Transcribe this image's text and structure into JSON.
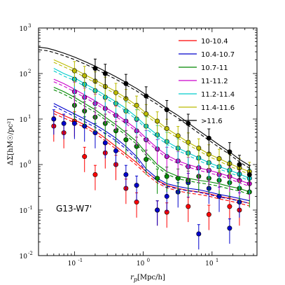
{
  "chart_data": {
    "type": "line",
    "title": "",
    "xlabel": "r_p [Mpc/h]",
    "ylabel": "ΔΣ[hM☉/pc²]",
    "xscale": "log",
    "yscale": "log",
    "xlim": [
      0.03,
      45
    ],
    "ylim": [
      0.01,
      1000
    ],
    "x_ticks": [
      {
        "value": 0.1,
        "label": "10",
        "exp": "-1"
      },
      {
        "value": 1,
        "label": "10",
        "exp": "0"
      },
      {
        "value": 10,
        "label": "10",
        "exp": "1"
      }
    ],
    "y_ticks": [
      {
        "value": 0.01,
        "label": "10",
        "exp": "-2"
      },
      {
        "value": 0.1,
        "label": "10",
        "exp": "-1"
      },
      {
        "value": 1,
        "label": "10",
        "exp": "0"
      },
      {
        "value": 10,
        "label": "10",
        "exp": "1"
      },
      {
        "value": 100,
        "label": "10",
        "exp": "2"
      },
      {
        "value": 1000,
        "label": "10",
        "exp": "3"
      }
    ],
    "legend_position": "top-right",
    "annotation": "G13-W7'",
    "grid": false,
    "series": [
      {
        "name": "10-10.4",
        "color": "#ff0000",
        "x": [
          0.05,
          0.07,
          0.1,
          0.14,
          0.2,
          0.28,
          0.4,
          0.56,
          0.8,
          1.1,
          1.6,
          2.2,
          3.2,
          4.5,
          6.4,
          9,
          12.7,
          18,
          25,
          35
        ],
        "model": [
          15,
          12,
          9.5,
          7.5,
          5.5,
          3.8,
          2.5,
          1.7,
          1.1,
          0.7,
          0.45,
          0.35,
          0.3,
          0.27,
          0.25,
          0.23,
          0.2,
          0.18,
          0.16,
          0.14
        ],
        "points_x": [
          0.05,
          0.07,
          0.1,
          0.14,
          0.2,
          0.28,
          0.4,
          0.56,
          0.8,
          1.6,
          2.2,
          4.5,
          9,
          18,
          25
        ],
        "points_y": [
          7,
          5,
          9,
          1.5,
          0.6,
          1.8,
          1.0,
          0.3,
          0.15,
          0.1,
          0.09,
          0.12,
          0.08,
          0.12,
          0.1
        ]
      },
      {
        "name": "10.4-10.7",
        "color": "#0000cc",
        "x": [
          0.05,
          0.07,
          0.1,
          0.14,
          0.2,
          0.28,
          0.4,
          0.56,
          0.8,
          1.1,
          1.6,
          2.2,
          3.2,
          4.5,
          6.4,
          9,
          12.7,
          18,
          25,
          35
        ],
        "model": [
          22,
          17,
          13,
          10,
          7.5,
          5.5,
          3.8,
          2.5,
          1.5,
          0.8,
          0.5,
          0.38,
          0.33,
          0.3,
          0.28,
          0.25,
          0.22,
          0.2,
          0.18,
          0.16
        ],
        "points_x": [
          0.05,
          0.07,
          0.1,
          0.14,
          0.2,
          0.28,
          0.4,
          0.56,
          0.8,
          1.6,
          2.2,
          3.2,
          4.5,
          6.4,
          9,
          12.7,
          18,
          25
        ],
        "points_y": [
          10,
          8,
          8,
          7,
          5,
          3,
          2,
          0.6,
          0.35,
          0.1,
          0.2,
          0.25,
          0.4,
          0.03,
          0.3,
          0.2,
          0.04,
          0.15
        ]
      },
      {
        "name": "10.7-11",
        "color": "#008800",
        "x": [
          0.05,
          0.07,
          0.1,
          0.14,
          0.2,
          0.28,
          0.4,
          0.56,
          0.8,
          1.1,
          1.6,
          2.2,
          3.2,
          4.5,
          6.4,
          9,
          12.7,
          18,
          25,
          35
        ],
        "model": [
          50,
          40,
          30,
          22,
          16,
          11,
          7.5,
          5,
          3.2,
          1.8,
          1.0,
          0.7,
          0.55,
          0.5,
          0.45,
          0.42,
          0.38,
          0.33,
          0.3,
          0.25
        ],
        "points_x": [
          0.1,
          0.14,
          0.2,
          0.28,
          0.4,
          0.56,
          0.8,
          1.1,
          1.6,
          2.2,
          3.2,
          4.5,
          6.4,
          9,
          12.7,
          18,
          25,
          35
        ],
        "points_y": [
          20,
          15,
          11,
          8,
          5.5,
          3.5,
          2.5,
          1.3,
          0.5,
          0.55,
          0.5,
          0.45,
          0.55,
          0.5,
          0.45,
          0.4,
          0.3,
          0.25
        ]
      },
      {
        "name": "11-11.2",
        "color": "#cc00cc",
        "x": [
          0.05,
          0.07,
          0.1,
          0.14,
          0.2,
          0.28,
          0.4,
          0.56,
          0.8,
          1.1,
          1.6,
          2.2,
          3.2,
          4.5,
          6.4,
          9,
          12.7,
          18,
          25,
          35
        ],
        "model": [
          75,
          60,
          45,
          34,
          25,
          18,
          13,
          9,
          6,
          3.8,
          2.3,
          1.6,
          1.2,
          1.0,
          0.85,
          0.75,
          0.65,
          0.55,
          0.45,
          0.38
        ],
        "points_x": [
          0.1,
          0.14,
          0.2,
          0.28,
          0.4,
          0.56,
          0.8,
          1.1,
          1.6,
          2.2,
          3.2,
          4.5,
          6.4,
          9,
          12.7,
          18,
          25,
          35
        ],
        "points_y": [
          40,
          30,
          22,
          17,
          12,
          9,
          5.5,
          3.5,
          2.2,
          1.5,
          1.2,
          0.9,
          0.85,
          0.75,
          0.6,
          0.55,
          0.45,
          0.38
        ]
      },
      {
        "name": "11.2-11.4",
        "color": "#00cccc",
        "x": [
          0.05,
          0.07,
          0.1,
          0.14,
          0.2,
          0.28,
          0.4,
          0.56,
          0.8,
          1.1,
          1.6,
          2.2,
          3.2,
          4.5,
          6.4,
          9,
          12.7,
          18,
          25,
          35
        ],
        "model": [
          130,
          100,
          80,
          60,
          45,
          33,
          24,
          17,
          11,
          7,
          4.5,
          3.2,
          2.3,
          1.8,
          1.4,
          1.1,
          0.9,
          0.75,
          0.62,
          0.5
        ],
        "points_x": [
          0.1,
          0.14,
          0.2,
          0.28,
          0.4,
          0.56,
          0.8,
          1.1,
          1.6,
          2.2,
          3.2,
          4.5,
          6.4,
          9,
          12.7,
          18,
          25,
          35
        ],
        "points_y": [
          75,
          58,
          42,
          30,
          22,
          15,
          10,
          7,
          4.5,
          3.2,
          2.3,
          1.8,
          1.4,
          1.1,
          0.9,
          0.75,
          0.62,
          0.5
        ]
      },
      {
        "name": "11.4-11.6",
        "color": "#bbbb00",
        "x": [
          0.05,
          0.07,
          0.1,
          0.14,
          0.2,
          0.28,
          0.4,
          0.56,
          0.8,
          1.1,
          1.6,
          2.2,
          3.2,
          4.5,
          6.4,
          9,
          12.7,
          18,
          25,
          35
        ],
        "model": [
          200,
          160,
          125,
          95,
          72,
          54,
          40,
          29,
          20,
          13.5,
          9,
          6.2,
          4.3,
          3.1,
          2.3,
          1.7,
          1.35,
          1.05,
          0.85,
          0.7
        ],
        "points_x": [
          0.1,
          0.14,
          0.2,
          0.28,
          0.4,
          0.56,
          0.8,
          1.1,
          1.6,
          2.2,
          3.2,
          4.5,
          6.4,
          9,
          12.7,
          18,
          25,
          35
        ],
        "points_y": [
          115,
          90,
          68,
          52,
          38,
          28,
          20,
          13,
          9,
          6.2,
          4.3,
          3.1,
          2.3,
          1.7,
          1.35,
          1.05,
          0.85,
          0.7
        ]
      },
      {
        "name": ">11.6",
        "color": "#000000",
        "x": [
          0.03,
          0.04,
          0.05,
          0.07,
          0.1,
          0.14,
          0.2,
          0.28,
          0.4,
          0.56,
          0.8,
          1.1,
          1.6,
          2.2,
          3.2,
          4.5,
          6.4,
          9,
          12.7,
          18,
          25,
          35
        ],
        "model": [
          380,
          360,
          330,
          280,
          230,
          185,
          145,
          112,
          85,
          64,
          47,
          34,
          24,
          17,
          12,
          8.2,
          5.6,
          3.9,
          2.7,
          1.9,
          1.3,
          0.95
        ],
        "points_x": [
          0.2,
          0.28,
          0.56,
          1.1,
          2.2,
          4.5,
          9,
          18,
          25,
          35
        ],
        "points_y": [
          130,
          100,
          60,
          32,
          16,
          8,
          3.8,
          1.9,
          1.0,
          0.6
        ]
      }
    ]
  }
}
